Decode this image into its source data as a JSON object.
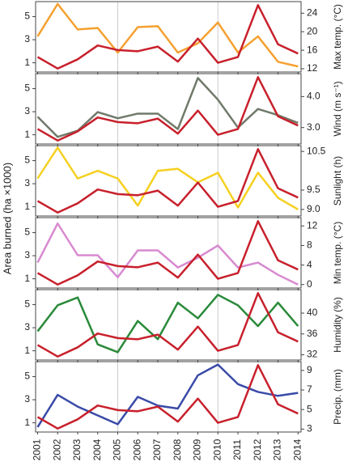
{
  "ylabel": "Area burned (ha ×1000)",
  "chart_data": [
    {
      "type": "line",
      "y2label": "Max temp. (°C)",
      "x": [
        2001,
        2002,
        2003,
        2004,
        2005,
        2006,
        2007,
        2008,
        2009,
        2010,
        2011,
        2012,
        2013,
        2014
      ],
      "xlim": [
        2000.9,
        2014.15
      ],
      "xticks": [
        2001,
        2002,
        2003,
        2004,
        2005,
        2006,
        2007,
        2008,
        2009,
        2010,
        2011,
        2012,
        2013,
        2014
      ],
      "vlines": [
        2005,
        2010
      ],
      "ylim": [
        0.2,
        6.3
      ],
      "yticks": [
        1,
        3,
        5
      ],
      "y2lim": [
        11.3,
        26.5
      ],
      "y2ticks": [
        12,
        16,
        20,
        24
      ],
      "series": [
        {
          "color": "#c8202c",
          "values": [
            1.5,
            0.5,
            1.3,
            2.5,
            2.1,
            2.0,
            2.4,
            1.1,
            3.1,
            1.0,
            1.5,
            6.0,
            2.6,
            1.8
          ]
        },
        {
          "color": "#f5a030",
          "axis": "y2",
          "values": [
            19,
            26,
            20.5,
            20.8,
            15.5,
            21,
            21.2,
            15.5,
            17.5,
            22,
            15.5,
            19,
            13.5,
            12.5
          ]
        }
      ]
    },
    {
      "type": "line",
      "y2label": "Wind (m s⁻¹)",
      "x": [
        2001,
        2002,
        2003,
        2004,
        2005,
        2006,
        2007,
        2008,
        2009,
        2010,
        2011,
        2012,
        2013,
        2014
      ],
      "xlim": [
        2000.9,
        2014.15
      ],
      "xticks": [
        2001,
        2002,
        2003,
        2004,
        2005,
        2006,
        2007,
        2008,
        2009,
        2010,
        2011,
        2012,
        2013,
        2014
      ],
      "vlines": [
        2005,
        2010
      ],
      "ylim": [
        0.2,
        6.3
      ],
      "yticks": [
        1,
        3,
        5
      ],
      "y2lim": [
        2.47,
        4.74
      ],
      "y2ticks": [
        {
          "value": 3,
          "label": "3.0"
        },
        {
          "value": 4,
          "label": "4.0"
        }
      ],
      "series": [
        {
          "color": "#c8202c",
          "values": [
            1.5,
            0.5,
            1.3,
            2.5,
            2.1,
            2.0,
            2.4,
            1.1,
            3.1,
            1.0,
            1.5,
            6.0,
            2.6,
            1.8
          ]
        },
        {
          "color": "#707a6a",
          "axis": "y2",
          "values": [
            3.35,
            2.7,
            2.9,
            3.5,
            3.3,
            3.45,
            3.45,
            2.95,
            4.6,
            3.9,
            3.0,
            3.6,
            3.4,
            3.15
          ]
        }
      ]
    },
    {
      "type": "line",
      "y2label": "Sunlight (h)",
      "x": [
        2001,
        2002,
        2003,
        2004,
        2005,
        2006,
        2007,
        2008,
        2009,
        2010,
        2011,
        2012,
        2013,
        2014
      ],
      "xlim": [
        2000.9,
        2014.15
      ],
      "xticks": [
        2001,
        2002,
        2003,
        2004,
        2005,
        2006,
        2007,
        2008,
        2009,
        2010,
        2011,
        2012,
        2013,
        2014
      ],
      "vlines": [
        2005,
        2010
      ],
      "ylim": [
        0.2,
        6.3
      ],
      "yticks": [
        1,
        3,
        5
      ],
      "y2lim": [
        8.83,
        10.65
      ],
      "y2ticks": [
        {
          "value": 9,
          "label": "9.0"
        },
        {
          "value": 9.5,
          "label": "9.5"
        },
        10.5
      ],
      "series": [
        {
          "color": "#c8202c",
          "values": [
            1.5,
            0.5,
            1.3,
            2.5,
            2.1,
            2.0,
            2.4,
            1.1,
            3.1,
            1.0,
            1.5,
            6.0,
            2.6,
            1.8
          ]
        },
        {
          "color": "#f5d020",
          "axis": "y2",
          "values": [
            9.8,
            10.6,
            9.8,
            10.0,
            9.8,
            9.1,
            10.0,
            10.05,
            9.7,
            9.95,
            9.05,
            9.95,
            9.3,
            9.0
          ]
        }
      ]
    },
    {
      "type": "line",
      "y2label": "Min temp. (°C)",
      "x": [
        2001,
        2002,
        2003,
        2004,
        2005,
        2006,
        2007,
        2008,
        2009,
        2010,
        2011,
        2012,
        2013,
        2014
      ],
      "xlim": [
        2000.9,
        2014.15
      ],
      "xticks": [
        2001,
        2002,
        2003,
        2004,
        2005,
        2006,
        2007,
        2008,
        2009,
        2010,
        2011,
        2012,
        2013,
        2014
      ],
      "vlines": [
        2005,
        2010
      ],
      "ylim": [
        0.2,
        6.3
      ],
      "yticks": [
        1,
        3,
        5
      ],
      "y2lim": [
        -0.7,
        13.7
      ],
      "y2ticks": [
        0,
        4,
        8,
        12
      ],
      "series": [
        {
          "color": "#c8202c",
          "values": [
            1.5,
            0.5,
            1.3,
            2.5,
            2.1,
            2.0,
            2.4,
            1.1,
            3.1,
            1.0,
            1.5,
            6.0,
            2.6,
            1.8
          ]
        },
        {
          "color": "#d88ad0",
          "axis": "y2",
          "values": [
            4.5,
            12.5,
            6,
            6,
            1.5,
            7,
            7,
            3.5,
            5.5,
            8,
            3.5,
            4.5,
            2,
            0
          ]
        }
      ]
    },
    {
      "type": "line",
      "y2label": "Humidity (%)",
      "x": [
        2001,
        2002,
        2003,
        2004,
        2005,
        2006,
        2007,
        2008,
        2009,
        2010,
        2011,
        2012,
        2013,
        2014
      ],
      "xlim": [
        2000.9,
        2014.15
      ],
      "xticks": [
        2001,
        2002,
        2003,
        2004,
        2005,
        2006,
        2007,
        2008,
        2009,
        2010,
        2011,
        2012,
        2013,
        2014
      ],
      "vlines": [
        2005,
        2010
      ],
      "ylim": [
        0.2,
        6.3
      ],
      "yticks": [
        1,
        3,
        5
      ],
      "y2lim": [
        31,
        44.5
      ],
      "y2ticks": [
        32,
        36,
        40
      ],
      "series": [
        {
          "color": "#c8202c",
          "values": [
            1.5,
            0.5,
            1.3,
            2.5,
            2.1,
            2.0,
            2.4,
            1.1,
            3.1,
            1.0,
            1.5,
            6.0,
            2.6,
            1.8
          ]
        },
        {
          "color": "#2a8a3a",
          "axis": "y2",
          "values": [
            36.5,
            41.5,
            43,
            34,
            32.5,
            38.5,
            35,
            42,
            39,
            43.5,
            41.5,
            37.5,
            42,
            37.5
          ]
        }
      ]
    },
    {
      "type": "line",
      "y2label": "Precip. (mm)",
      "x": [
        2001,
        2002,
        2003,
        2004,
        2005,
        2006,
        2007,
        2008,
        2009,
        2010,
        2011,
        2012,
        2013,
        2014
      ],
      "xlim": [
        2000.9,
        2014.15
      ],
      "xticks": [
        2001,
        2002,
        2003,
        2004,
        2005,
        2006,
        2007,
        2008,
        2009,
        2010,
        2011,
        2012,
        2013,
        2014
      ],
      "vlines": [
        2005,
        2010
      ],
      "ylim": [
        0.2,
        6.3
      ],
      "yticks": [
        1,
        3,
        5
      ],
      "y2lim": [
        2.7,
        9.9
      ],
      "y2ticks": [
        3,
        5,
        7,
        9
      ],
      "series": [
        {
          "color": "#c8202c",
          "values": [
            1.5,
            0.5,
            1.3,
            2.5,
            2.1,
            2.0,
            2.4,
            1.1,
            3.1,
            1.0,
            1.5,
            6.0,
            2.6,
            1.8
          ]
        },
        {
          "color": "#3a4aa8",
          "axis": "y2",
          "values": [
            3.2,
            6.5,
            5.3,
            4.4,
            3.5,
            6.3,
            5.4,
            5.1,
            8.5,
            9.6,
            7.6,
            6.8,
            6.4,
            6.7
          ]
        }
      ]
    }
  ]
}
